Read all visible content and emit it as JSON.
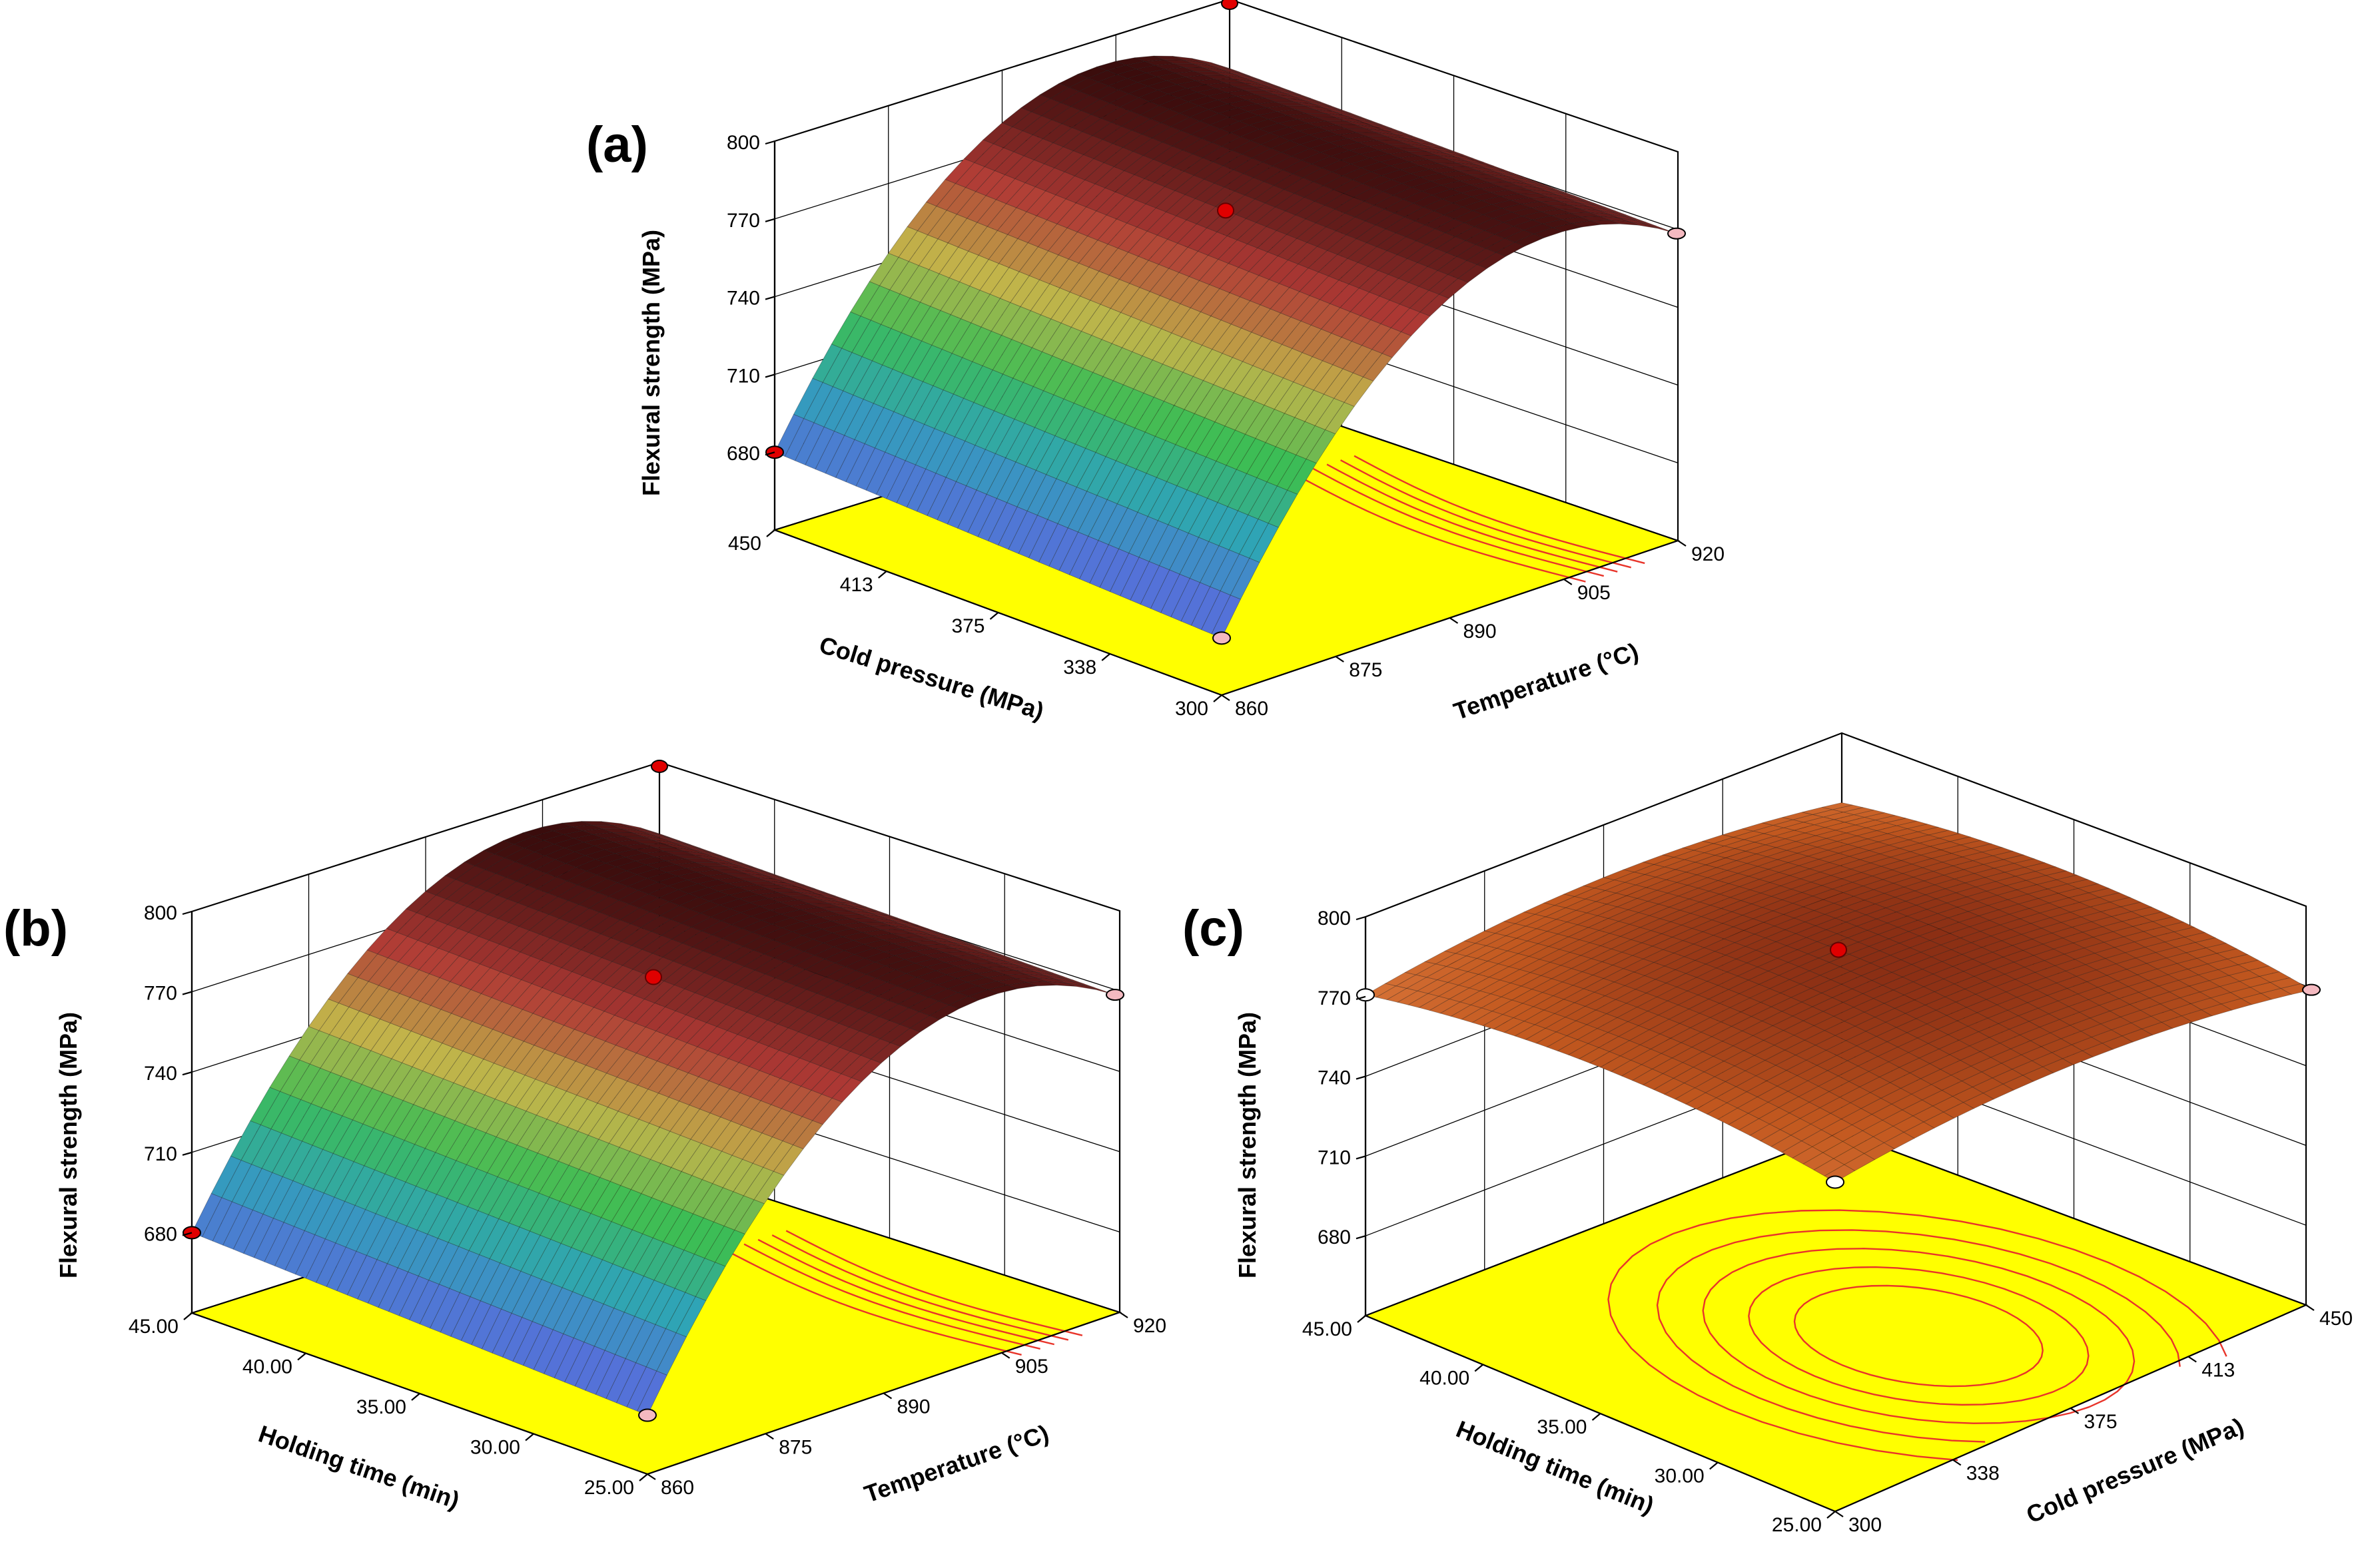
{
  "chart_data": [
    {
      "type": "surface3d",
      "panel": "(a)",
      "zlabel": "Flexural strength (MPa)",
      "z_ticks": [
        "680",
        "710",
        "740",
        "770",
        "800"
      ],
      "zlim": [
        650,
        800
      ],
      "x_label": "Cold pressure (MPa)",
      "x_ticks": [
        "300",
        "338",
        "375",
        "413",
        "450"
      ],
      "y_label": "Temperature (°C)",
      "y_ticks": [
        "860",
        "875",
        "890",
        "905",
        "920"
      ],
      "surface_peak": 790,
      "surface_low": 680,
      "colors": [
        "#5472d8",
        "#2fa3b8",
        "#3cbd55",
        "#c2b44a",
        "#b03a35",
        "#3a0c0c"
      ]
    },
    {
      "type": "surface3d",
      "panel": "(b)",
      "zlabel": "Flexural strength (MPa)",
      "z_ticks": [
        "680",
        "710",
        "740",
        "770",
        "800"
      ],
      "zlim": [
        650,
        800
      ],
      "x_label": "Holding time (min)",
      "x_ticks": [
        "25.00",
        "30.00",
        "35.00",
        "40.00",
        "45.00"
      ],
      "y_label": "Temperature (°C)",
      "y_ticks": [
        "860",
        "875",
        "890",
        "905",
        "920"
      ],
      "surface_peak": 790,
      "surface_low": 680,
      "colors": [
        "#5472d8",
        "#2fa3b8",
        "#3cbd55",
        "#c2b44a",
        "#b03a35",
        "#3a0c0c"
      ]
    },
    {
      "type": "surface3d",
      "panel": "(c)",
      "zlabel": "Flexural strength (MPa)",
      "z_ticks": [
        "680",
        "710",
        "740",
        "770",
        "800"
      ],
      "zlim": [
        650,
        800
      ],
      "x_label": "Holding time (min)",
      "x_ticks": [
        "25.00",
        "30.00",
        "35.00",
        "40.00",
        "45.00"
      ],
      "y_label": "Cold pressure (MPa)",
      "y_ticks": [
        "300",
        "338",
        "375",
        "413",
        "450"
      ],
      "surface_peak": 790,
      "surface_low": 770,
      "colors": [
        "#8a2e14",
        "#c2581f",
        "#d9763a"
      ]
    }
  ]
}
